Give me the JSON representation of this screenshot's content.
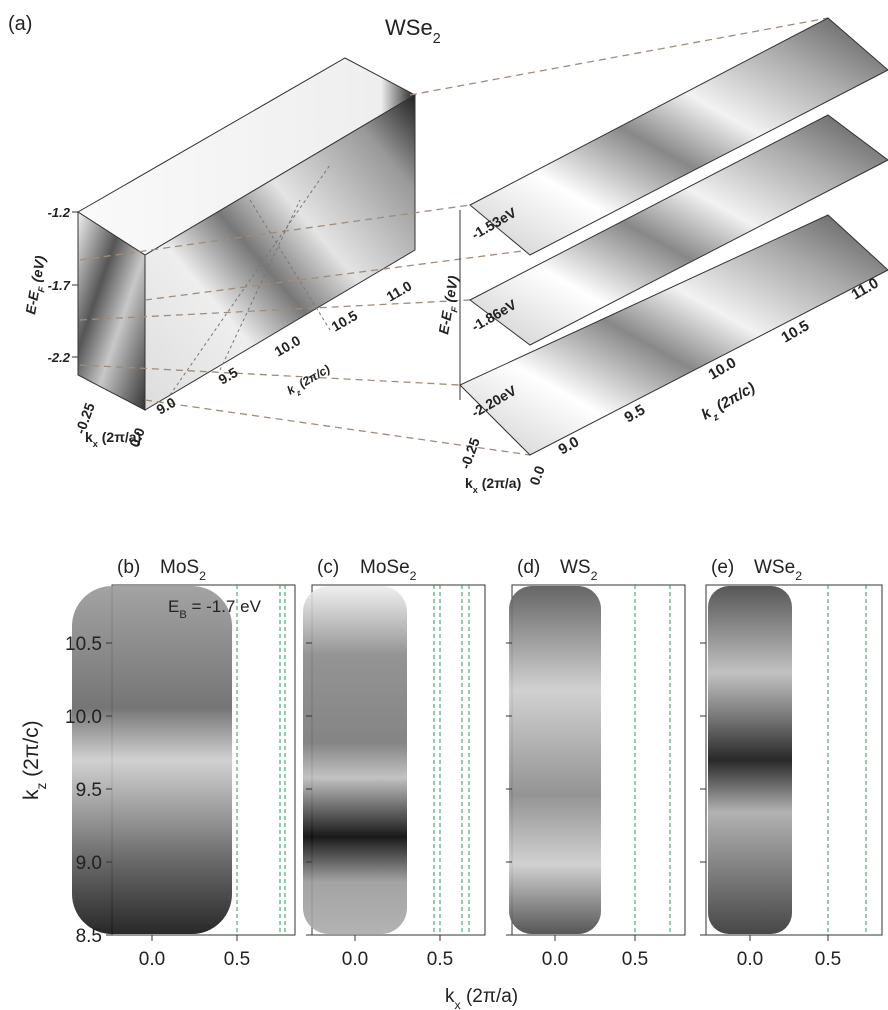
{
  "figure": {
    "panel_a": {
      "label": "(a)",
      "title": {
        "main": "WSe",
        "sub": "2"
      },
      "left_block": {
        "energy_label": {
          "main": "E-E",
          "sub": "F",
          "unit": " (eV)"
        },
        "energy_ticks": [
          "-1.2",
          "-1.7",
          "-2.2"
        ],
        "kx_label": {
          "main": "k",
          "sub": "x",
          "unit": " (2π/a)"
        },
        "kx_ticks": [
          "-0.25",
          "0.0"
        ],
        "kz_label": {
          "main": "k",
          "sub": "z",
          "unit": " (2π/c)"
        },
        "kz_ticks": [
          "9.0",
          "9.5",
          "10.0",
          "10.5",
          "11.0"
        ]
      },
      "right_block": {
        "energy_label": {
          "main": "E-E",
          "sub": "F",
          "unit": " (eV)"
        },
        "slices": [
          "-1.53eV",
          "-1.86eV",
          "-2.20eV"
        ],
        "kx_label": {
          "main": "k",
          "sub": "x",
          "unit": " (2π/a)"
        },
        "kx_ticks": [
          "-0.25",
          "0.0"
        ],
        "kz_label": {
          "main": "k",
          "sub": "z",
          "unit": " (2π/c)"
        },
        "kz_ticks": [
          "9.0",
          "9.5",
          "10.0",
          "10.5",
          "11.0"
        ]
      }
    },
    "panels": [
      {
        "label": "(b)",
        "material": {
          "main": "MoS",
          "sub": "2"
        }
      },
      {
        "label": "(c)",
        "material": {
          "main": "MoSe",
          "sub": "2"
        }
      },
      {
        "label": "(d)",
        "material": {
          "main": "WS",
          "sub": "2"
        }
      },
      {
        "label": "(e)",
        "material": {
          "main": "WSe",
          "sub": "2"
        }
      }
    ],
    "shared": {
      "energy_note": {
        "main": "E",
        "sub": "B",
        "unit": " = -1.7 eV"
      },
      "y_label": {
        "main": "k",
        "sub": "z",
        "unit": " (2π/c)"
      },
      "y_ticks": [
        "8.5",
        "9.0",
        "9.5",
        "10.0",
        "10.5"
      ],
      "x_ticks": [
        "0.0",
        "0.5"
      ],
      "x_label": {
        "main": "k",
        "sub": "x",
        "unit": " (2π/a)"
      }
    }
  }
}
